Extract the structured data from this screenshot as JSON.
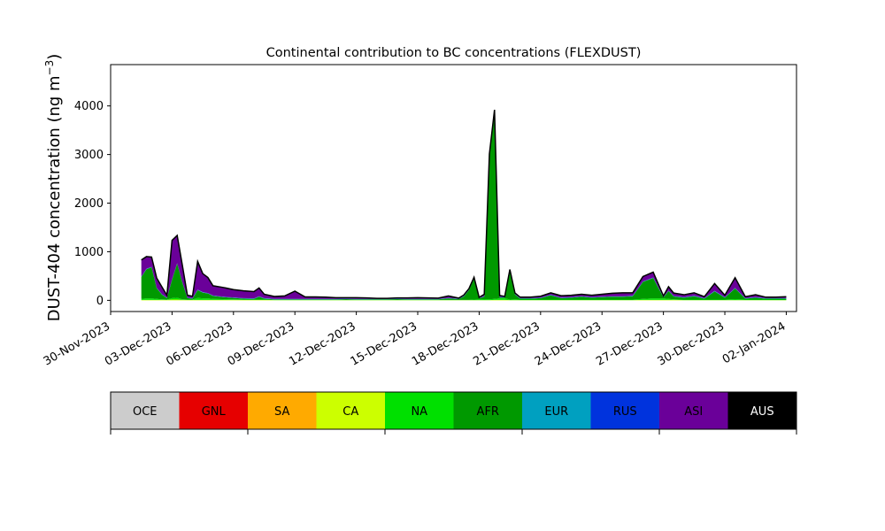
{
  "chart_data": {
    "type": "area",
    "title": "Continental contribution to BC concentrations (FLEXDUST)",
    "ylabel": "DUST-404 concentration (ng m",
    "ylabel_unit_superscript": "−3",
    "ylabel_close": ")",
    "xlabel": "",
    "x_axis_type": "date",
    "xlim": [
      "2023-11-30T00:00",
      "2024-01-02T12:00"
    ],
    "ylim": [
      -230,
      4850
    ],
    "yticks": [
      0,
      1000,
      2000,
      3000,
      4000
    ],
    "xtick_labels": [
      "30-Nov-2023",
      "03-Dec-2023",
      "06-Dec-2023",
      "09-Dec-2023",
      "12-Dec-2023",
      "15-Dec-2023",
      "18-Dec-2023",
      "21-Dec-2023",
      "24-Dec-2023",
      "27-Dec-2023",
      "30-Dec-2023",
      "02-Jan-2024"
    ],
    "xtick_dates": [
      "2023-11-30",
      "2023-12-03",
      "2023-12-06",
      "2023-12-09",
      "2023-12-12",
      "2023-12-15",
      "2023-12-18",
      "2023-12-21",
      "2023-12-24",
      "2023-12-27",
      "2023-12-30",
      "2024-01-02"
    ],
    "grid": false,
    "stacked": true,
    "x": [
      "2023-12-01T12:00",
      "2023-12-01T18:00",
      "2023-12-02T00:00",
      "2023-12-02T06:00",
      "2023-12-02T12:00",
      "2023-12-02T18:00",
      "2023-12-03T00:00",
      "2023-12-03T06:00",
      "2023-12-03T12:00",
      "2023-12-03T18:00",
      "2023-12-04T00:00",
      "2023-12-04T06:00",
      "2023-12-04T12:00",
      "2023-12-04T18:00",
      "2023-12-05T00:00",
      "2023-12-05T12:00",
      "2023-12-06T00:00",
      "2023-12-06T12:00",
      "2023-12-07T00:00",
      "2023-12-07T06:00",
      "2023-12-07T12:00",
      "2023-12-08T00:00",
      "2023-12-08T12:00",
      "2023-12-09T00:00",
      "2023-12-09T12:00",
      "2023-12-10T00:00",
      "2023-12-10T12:00",
      "2023-12-11T00:00",
      "2023-12-11T12:00",
      "2023-12-12T00:00",
      "2023-12-12T12:00",
      "2023-12-13T00:00",
      "2023-12-13T12:00",
      "2023-12-14T00:00",
      "2023-12-14T12:00",
      "2023-12-15T00:00",
      "2023-12-15T12:00",
      "2023-12-16T00:00",
      "2023-12-16T12:00",
      "2023-12-17T00:00",
      "2023-12-17T06:00",
      "2023-12-17T12:00",
      "2023-12-17T18:00",
      "2023-12-18T00:00",
      "2023-12-18T06:00",
      "2023-12-18T12:00",
      "2023-12-18T18:00",
      "2023-12-19T00:00",
      "2023-12-19T06:00",
      "2023-12-19T12:00",
      "2023-12-19T18:00",
      "2023-12-20T00:00",
      "2023-12-20T06:00",
      "2023-12-20T12:00",
      "2023-12-21T00:00",
      "2023-12-21T12:00",
      "2023-12-22T00:00",
      "2023-12-22T12:00",
      "2023-12-23T00:00",
      "2023-12-23T12:00",
      "2023-12-24T00:00",
      "2023-12-24T12:00",
      "2023-12-25T00:00",
      "2023-12-25T12:00",
      "2023-12-26T00:00",
      "2023-12-26T12:00",
      "2023-12-27T00:00",
      "2023-12-27T06:00",
      "2023-12-27T12:00",
      "2023-12-28T00:00",
      "2023-12-28T12:00",
      "2023-12-29T00:00",
      "2023-12-29T12:00",
      "2023-12-30T00:00",
      "2023-12-30T12:00",
      "2023-12-31T00:00",
      "2023-12-31T12:00",
      "2024-01-01T00:00",
      "2024-01-01T12:00",
      "2024-01-02T00:00"
    ],
    "series": [
      {
        "name": "OCE",
        "color": "#cccccc",
        "values": [
          0,
          0,
          0,
          0,
          0,
          0,
          0,
          0,
          0,
          0,
          0,
          0,
          0,
          0,
          0,
          0,
          0,
          0,
          0,
          0,
          0,
          0,
          0,
          0,
          0,
          0,
          0,
          0,
          0,
          0,
          0,
          0,
          0,
          0,
          0,
          0,
          0,
          0,
          0,
          0,
          0,
          0,
          0,
          0,
          0,
          0,
          0,
          0,
          0,
          0,
          0,
          0,
          0,
          0,
          0,
          0,
          0,
          0,
          0,
          0,
          0,
          0,
          0,
          0,
          0,
          0,
          0,
          0,
          0,
          0,
          0,
          0,
          0,
          0,
          0,
          0,
          0,
          0,
          0,
          0
        ]
      },
      {
        "name": "GNL",
        "color": "#e60000",
        "values": [
          0,
          0,
          0,
          0,
          0,
          0,
          0,
          0,
          0,
          0,
          0,
          0,
          0,
          0,
          0,
          0,
          0,
          0,
          0,
          0,
          0,
          0,
          0,
          0,
          0,
          0,
          0,
          0,
          0,
          0,
          0,
          0,
          0,
          0,
          0,
          0,
          0,
          0,
          0,
          0,
          0,
          0,
          0,
          0,
          0,
          0,
          0,
          0,
          0,
          0,
          0,
          0,
          0,
          0,
          0,
          0,
          0,
          0,
          0,
          0,
          0,
          0,
          0,
          0,
          0,
          0,
          0,
          0,
          0,
          0,
          0,
          0,
          0,
          0,
          0,
          0,
          0,
          0,
          0,
          0
        ]
      },
      {
        "name": "SA",
        "color": "#ffaa00",
        "values": [
          0,
          0,
          0,
          0,
          0,
          0,
          0,
          0,
          0,
          0,
          0,
          0,
          0,
          0,
          0,
          0,
          0,
          0,
          0,
          0,
          0,
          0,
          0,
          0,
          0,
          0,
          0,
          0,
          0,
          0,
          0,
          0,
          0,
          0,
          0,
          0,
          0,
          0,
          0,
          0,
          0,
          0,
          0,
          0,
          0,
          0,
          0,
          0,
          0,
          0,
          0,
          0,
          0,
          0,
          0,
          0,
          0,
          0,
          0,
          0,
          0,
          0,
          0,
          0,
          0,
          0,
          0,
          0,
          0,
          0,
          0,
          0,
          0,
          0,
          0,
          0,
          0,
          0,
          0,
          0
        ]
      },
      {
        "name": "CA",
        "color": "#ccff00",
        "values": [
          10,
          10,
          10,
          10,
          10,
          10,
          15,
          15,
          10,
          10,
          10,
          10,
          10,
          10,
          10,
          10,
          10,
          10,
          10,
          10,
          10,
          5,
          5,
          5,
          5,
          5,
          5,
          5,
          5,
          5,
          5,
          5,
          5,
          5,
          5,
          5,
          5,
          5,
          5,
          5,
          5,
          5,
          5,
          5,
          5,
          5,
          10,
          10,
          10,
          5,
          5,
          5,
          5,
          5,
          5,
          5,
          5,
          5,
          5,
          5,
          5,
          5,
          5,
          5,
          10,
          10,
          10,
          10,
          10,
          5,
          5,
          5,
          5,
          5,
          5,
          5,
          5,
          5,
          5,
          5
        ]
      },
      {
        "name": "NA",
        "color": "#00e000",
        "values": [
          20,
          30,
          30,
          20,
          10,
          5,
          30,
          40,
          10,
          5,
          5,
          40,
          30,
          30,
          20,
          15,
          10,
          5,
          5,
          5,
          5,
          5,
          5,
          5,
          5,
          5,
          5,
          5,
          5,
          5,
          5,
          5,
          5,
          5,
          5,
          5,
          5,
          5,
          5,
          5,
          5,
          5,
          10,
          15,
          20,
          15,
          20,
          30,
          30,
          10,
          15,
          10,
          10,
          10,
          10,
          10,
          10,
          10,
          10,
          10,
          10,
          10,
          10,
          10,
          20,
          30,
          30,
          20,
          10,
          10,
          10,
          10,
          10,
          10,
          20,
          10,
          10,
          10,
          10,
          10
        ]
      },
      {
        "name": "AFR",
        "color": "#009900",
        "values": [
          450,
          600,
          640,
          220,
          100,
          30,
          380,
          700,
          350,
          30,
          20,
          160,
          120,
          100,
          60,
          40,
          30,
          20,
          15,
          60,
          20,
          10,
          10,
          10,
          10,
          10,
          10,
          10,
          15,
          10,
          10,
          10,
          10,
          15,
          10,
          10,
          10,
          10,
          30,
          15,
          70,
          200,
          430,
          20,
          50,
          2950,
          3800,
          20,
          20,
          560,
          100,
          20,
          20,
          20,
          30,
          90,
          30,
          40,
          60,
          40,
          50,
          60,
          60,
          70,
          350,
          420,
          20,
          160,
          60,
          40,
          70,
          20,
          170,
          40,
          220,
          20,
          40,
          20,
          20,
          20
        ]
      },
      {
        "name": "EUR",
        "color": "#00a0c0",
        "values": [
          5,
          5,
          5,
          5,
          5,
          5,
          5,
          5,
          5,
          5,
          5,
          5,
          5,
          5,
          5,
          5,
          5,
          5,
          5,
          5,
          5,
          5,
          5,
          5,
          5,
          5,
          5,
          5,
          5,
          5,
          5,
          5,
          5,
          5,
          5,
          5,
          5,
          5,
          5,
          5,
          5,
          5,
          5,
          5,
          5,
          5,
          5,
          5,
          5,
          5,
          5,
          5,
          5,
          5,
          5,
          5,
          5,
          5,
          5,
          5,
          5,
          5,
          5,
          5,
          5,
          5,
          5,
          5,
          5,
          5,
          5,
          5,
          5,
          5,
          5,
          5,
          5,
          5,
          5,
          5
        ]
      },
      {
        "name": "RUS",
        "color": "#0033dd",
        "values": [
          5,
          5,
          5,
          5,
          5,
          5,
          5,
          5,
          5,
          5,
          5,
          5,
          5,
          5,
          5,
          5,
          5,
          5,
          5,
          5,
          5,
          5,
          5,
          5,
          5,
          5,
          5,
          5,
          5,
          5,
          5,
          5,
          5,
          5,
          5,
          5,
          5,
          5,
          5,
          5,
          5,
          5,
          5,
          5,
          5,
          5,
          5,
          5,
          5,
          5,
          5,
          5,
          5,
          5,
          5,
          5,
          5,
          5,
          5,
          5,
          5,
          5,
          5,
          5,
          5,
          5,
          5,
          5,
          5,
          5,
          5,
          5,
          5,
          5,
          5,
          5,
          5,
          5,
          5,
          5
        ]
      },
      {
        "name": "ASI",
        "color": "#6a0099",
        "values": [
          340,
          250,
          200,
          200,
          150,
          50,
          800,
          570,
          350,
          50,
          40,
          580,
          380,
          320,
          200,
          190,
          160,
          150,
          140,
          170,
          80,
          50,
          60,
          160,
          40,
          40,
          35,
          25,
          20,
          25,
          20,
          10,
          10,
          15,
          20,
          25,
          20,
          15,
          40,
          10,
          20,
          20,
          20,
          10,
          40,
          30,
          80,
          30,
          10,
          50,
          20,
          20,
          20,
          20,
          30,
          40,
          40,
          40,
          40,
          40,
          50,
          60,
          70,
          60,
          100,
          110,
          20,
          80,
          60,
          50,
          60,
          30,
          150,
          40,
          210,
          30,
          50,
          20,
          20,
          30
        ]
      },
      {
        "name": "AUS",
        "color": "#000000",
        "values": [
          0,
          0,
          0,
          0,
          0,
          0,
          0,
          0,
          0,
          0,
          0,
          0,
          0,
          0,
          0,
          0,
          0,
          0,
          0,
          0,
          0,
          0,
          0,
          0,
          0,
          0,
          0,
          0,
          0,
          0,
          0,
          0,
          0,
          0,
          0,
          0,
          0,
          0,
          0,
          0,
          0,
          0,
          0,
          0,
          0,
          0,
          0,
          0,
          0,
          0,
          0,
          0,
          0,
          0,
          0,
          0,
          0,
          0,
          0,
          0,
          0,
          0,
          0,
          0,
          0,
          0,
          0,
          0,
          0,
          0,
          0,
          0,
          0,
          0,
          0,
          0,
          0,
          0,
          0,
          0
        ]
      }
    ],
    "total_line_color": "#000000",
    "legend": {
      "placement": "below",
      "entries": [
        {
          "label": "OCE",
          "color": "#cccccc",
          "text_color": "#000000"
        },
        {
          "label": "GNL",
          "color": "#e60000",
          "text_color": "#000000"
        },
        {
          "label": "SA",
          "color": "#ffaa00",
          "text_color": "#000000"
        },
        {
          "label": "CA",
          "color": "#ccff00",
          "text_color": "#000000"
        },
        {
          "label": "NA",
          "color": "#00e000",
          "text_color": "#000000"
        },
        {
          "label": "AFR",
          "color": "#009900",
          "text_color": "#000000"
        },
        {
          "label": "EUR",
          "color": "#00a0c0",
          "text_color": "#000000"
        },
        {
          "label": "RUS",
          "color": "#0033dd",
          "text_color": "#000000"
        },
        {
          "label": "ASI",
          "color": "#6a0099",
          "text_color": "#000000"
        },
        {
          "label": "AUS",
          "color": "#000000",
          "text_color": "#ffffff"
        }
      ]
    }
  }
}
